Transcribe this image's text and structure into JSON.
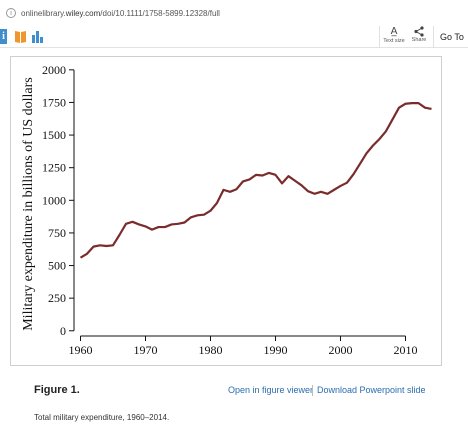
{
  "browser": {
    "url_prefix": "onlinelibrary.",
    "url_host": "wiley.com",
    "url_path": "/doi/10.1111/1758-5899.12328/full"
  },
  "toolbar": {
    "info_icon": "i",
    "text_size_label": "Text size",
    "share_label": "Share",
    "goto_label": "Go To",
    "icons": [
      "info-icon",
      "book-icon",
      "bar-chart-icon",
      "text-size-icon",
      "share-icon"
    ]
  },
  "figure": {
    "label": "Figure 1.",
    "open_viewer": "Open in figure viewer",
    "download_ppt": "Download Powerpoint slide",
    "caption": "Total military expenditure, 1960–2014."
  },
  "colors": {
    "line": "#7a2c2c",
    "link": "#2a6db0"
  },
  "chart_data": {
    "type": "line",
    "ylabel": "Military expenditure in billions of US dollars",
    "xlabel": "",
    "xlim": [
      1959,
      2015
    ],
    "ylim": [
      -40,
      2060
    ],
    "xticks": [
      1960,
      1970,
      1980,
      1990,
      2000,
      2010
    ],
    "yticks": [
      0,
      250,
      500,
      750,
      1000,
      1250,
      1500,
      1750,
      2000
    ],
    "grid": false,
    "series": [
      {
        "x": [
          1960,
          1961,
          1962,
          1963,
          1964,
          1965,
          1966,
          1967,
          1968,
          1969,
          1970,
          1971,
          1972,
          1973,
          1974,
          1975,
          1976,
          1977,
          1978,
          1979,
          1980,
          1981,
          1982,
          1983,
          1984,
          1985,
          1986,
          1987,
          1988,
          1989,
          1990,
          1991,
          1992,
          1993,
          1994,
          1995,
          1996,
          1997,
          1998,
          1999,
          2000,
          2001,
          2002,
          2003,
          2004,
          2005,
          2006,
          2007,
          2008,
          2009,
          2010,
          2011,
          2012,
          2013,
          2014
        ],
        "values": [
          560,
          590,
          645,
          655,
          650,
          655,
          735,
          820,
          835,
          815,
          800,
          775,
          795,
          795,
          815,
          820,
          830,
          870,
          885,
          890,
          920,
          980,
          1080,
          1065,
          1085,
          1145,
          1160,
          1195,
          1190,
          1210,
          1195,
          1130,
          1185,
          1150,
          1115,
          1070,
          1050,
          1065,
          1050,
          1080,
          1110,
          1135,
          1200,
          1280,
          1360,
          1420,
          1470,
          1530,
          1620,
          1710,
          1740,
          1745,
          1745,
          1710,
          1700
        ]
      }
    ]
  }
}
